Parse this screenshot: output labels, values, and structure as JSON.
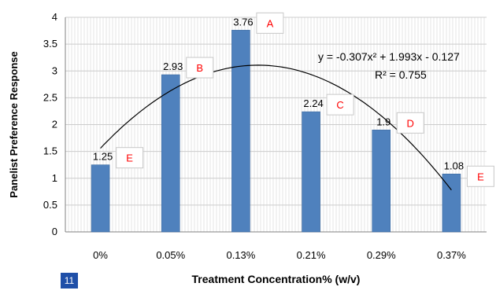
{
  "page_number": "11",
  "chart_data": {
    "type": "bar",
    "categories": [
      "0%",
      "0.05%",
      "0.13%",
      "0.21%",
      "0.29%",
      "0.37%"
    ],
    "values": [
      1.25,
      2.93,
      3.76,
      2.24,
      1.9,
      1.08
    ],
    "value_labels": [
      "1.25",
      "2.93",
      "3.76",
      "2.24",
      "1.9",
      "1.08"
    ],
    "letters": [
      "E",
      "B",
      "A",
      "C",
      "D",
      "E"
    ],
    "xlabel": "Treatment Concentration% (w/v)",
    "ylabel": "Panelist Preference Response",
    "ylim": [
      0,
      4
    ],
    "yticks": [
      "0",
      "0.5",
      "1",
      "1.5",
      "2",
      "2.5",
      "3",
      "3.5",
      "4"
    ],
    "grid": true,
    "trendline": {
      "type": "polynomial",
      "a": -0.307,
      "b": 1.993,
      "c": -0.127,
      "equation": "y = -0.307x² + 1.993x - 0.127",
      "r2": "R² = 0.755"
    },
    "colors": {
      "bar": "#4f81bd",
      "bar_stroke": "#3c6aa0",
      "letter": "#ff0000",
      "grid": "#cccccc",
      "axis": "#808080",
      "trend": "#000000"
    }
  }
}
